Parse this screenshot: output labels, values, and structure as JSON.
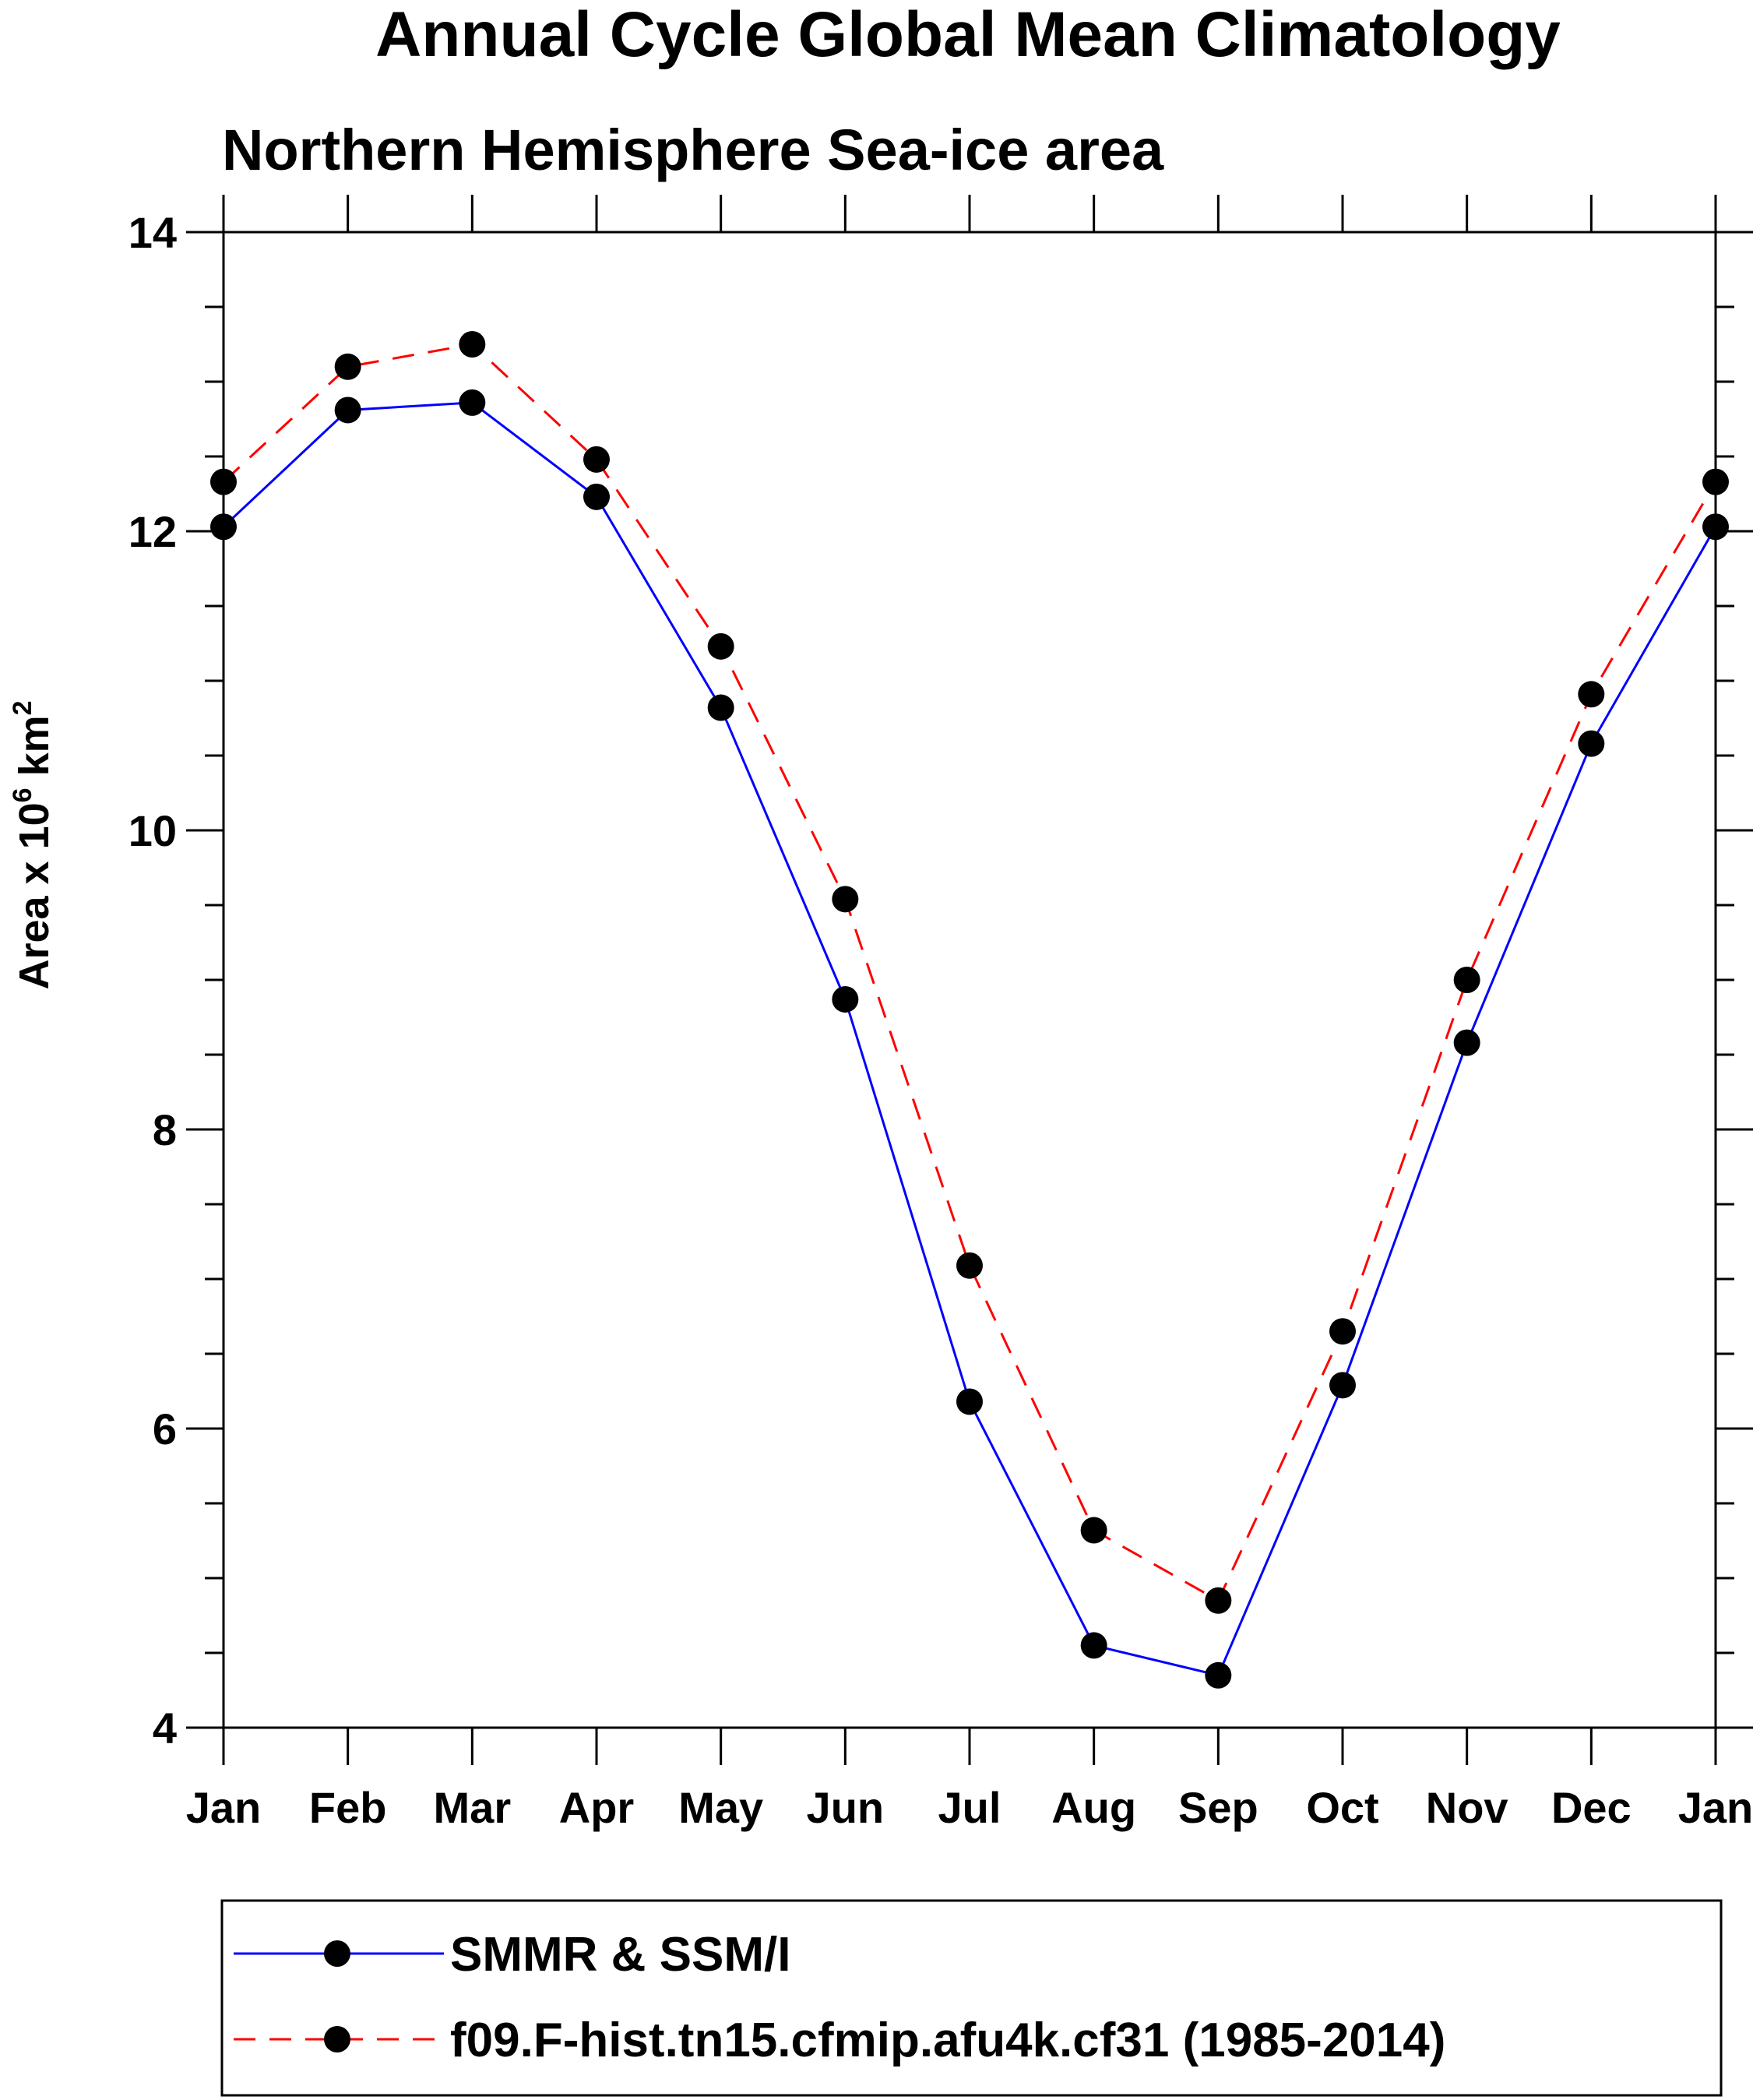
{
  "chart_data": {
    "type": "line",
    "title": "Annual Cycle Global Mean Climatology",
    "subtitle": "Northern Hemisphere Sea-ice area",
    "ylabel_text": "Area x 10",
    "ylabel_exp1": "6",
    "ylabel_unit": " km",
    "ylabel_exp2": "2",
    "xlabel": "",
    "categories": [
      "Jan",
      "Feb",
      "Mar",
      "Apr",
      "May",
      "Jun",
      "Jul",
      "Aug",
      "Sep",
      "Oct",
      "Nov",
      "Dec",
      "Jan"
    ],
    "ylim": [
      4,
      14
    ],
    "yticks": [
      4,
      6,
      8,
      10,
      12,
      14
    ],
    "yminor_step": 0.5,
    "series": [
      {
        "name": "SMMR & SSM/I",
        "color": "#0000ff",
        "dash": "solid",
        "values": [
          12.03,
          12.81,
          12.86,
          12.23,
          10.82,
          8.87,
          6.18,
          4.55,
          4.35,
          6.29,
          8.58,
          10.58,
          12.03
        ]
      },
      {
        "name": "f09.F-hist.tn15.cfmip.afu4k.cf31 (1985-2014)",
        "color": "#ff0000",
        "dash": "dashed",
        "values": [
          12.33,
          13.1,
          13.25,
          12.48,
          11.23,
          9.54,
          7.09,
          5.32,
          4.85,
          6.65,
          9.0,
          10.91,
          12.33
        ]
      }
    ]
  }
}
